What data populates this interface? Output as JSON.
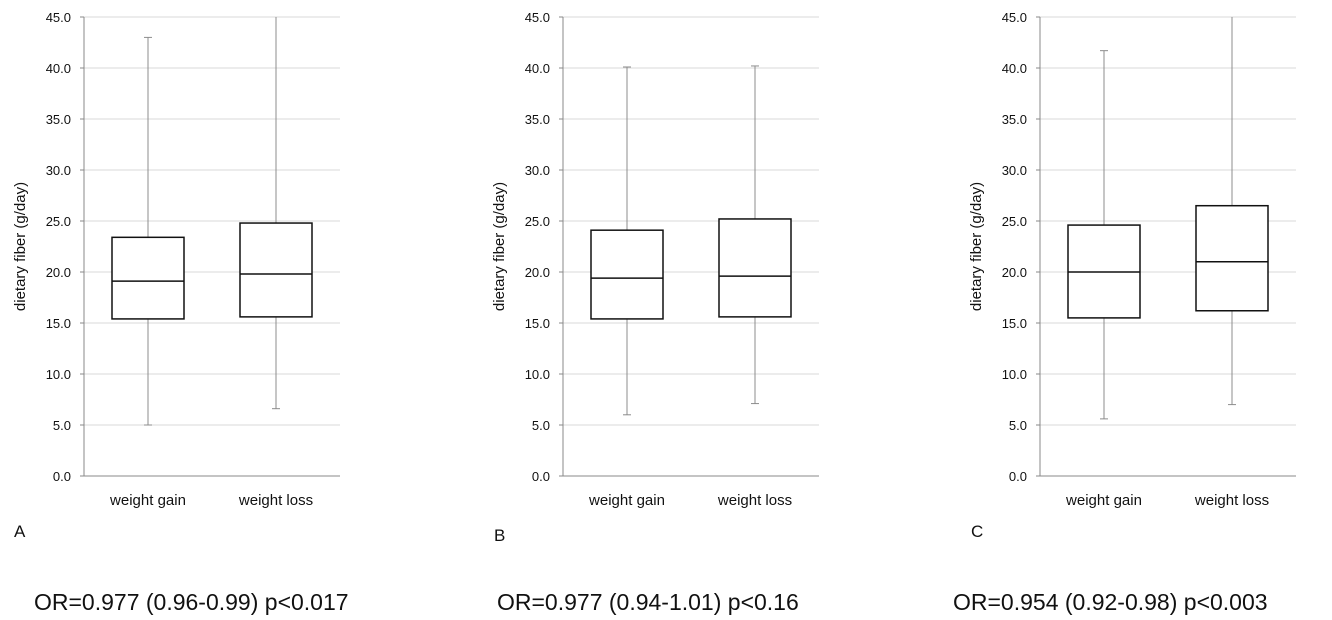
{
  "chart_data": [
    {
      "type": "box",
      "panel_label": "A",
      "ylabel": "dietary fiber (g/day)",
      "ylim": [
        0,
        45
      ],
      "yticks": [
        "0.0",
        "5.0",
        "10.0",
        "15.0",
        "20.0",
        "25.0",
        "30.0",
        "35.0",
        "40.0",
        "45.0"
      ],
      "grid": true,
      "categories": [
        "weight gain",
        "weight loss"
      ],
      "boxes": [
        {
          "min": 5.0,
          "q1": 15.4,
          "median": 19.1,
          "q3": 23.4,
          "max": 43.0
        },
        {
          "min": 6.6,
          "q1": 15.6,
          "median": 19.8,
          "q3": 24.8,
          "max": 45.0
        }
      ],
      "annotation": "OR=0.977 (0.96-0.99) p<0.017"
    },
    {
      "type": "box",
      "panel_label": "B",
      "ylabel": "dietary fiber (g/day)",
      "ylim": [
        0,
        45
      ],
      "yticks": [
        "0.0",
        "5.0",
        "10.0",
        "15.0",
        "20.0",
        "25.0",
        "30.0",
        "35.0",
        "40.0",
        "45.0"
      ],
      "grid": true,
      "categories": [
        "weight gain",
        "weight loss"
      ],
      "boxes": [
        {
          "min": 6.0,
          "q1": 15.4,
          "median": 19.4,
          "q3": 24.1,
          "max": 40.1
        },
        {
          "min": 7.1,
          "q1": 15.6,
          "median": 19.6,
          "q3": 25.2,
          "max": 40.2
        }
      ],
      "annotation": "OR=0.977 (0.94-1.01) p<0.16"
    },
    {
      "type": "box",
      "panel_label": "C",
      "ylabel": "dietary fiber (g/day)",
      "ylim": [
        0,
        45
      ],
      "yticks": [
        "0.0",
        "5.0",
        "10.0",
        "15.0",
        "20.0",
        "25.0",
        "30.0",
        "35.0",
        "40.0",
        "45.0"
      ],
      "grid": true,
      "categories": [
        "weight gain",
        "weight loss"
      ],
      "boxes": [
        {
          "min": 5.6,
          "q1": 15.5,
          "median": 20.0,
          "q3": 24.6,
          "max": 41.7
        },
        {
          "min": 7.0,
          "q1": 16.2,
          "median": 21.0,
          "q3": 26.5,
          "max": 45.0
        }
      ],
      "annotation": "OR=0.954 (0.92-0.98) p<0.003"
    }
  ]
}
